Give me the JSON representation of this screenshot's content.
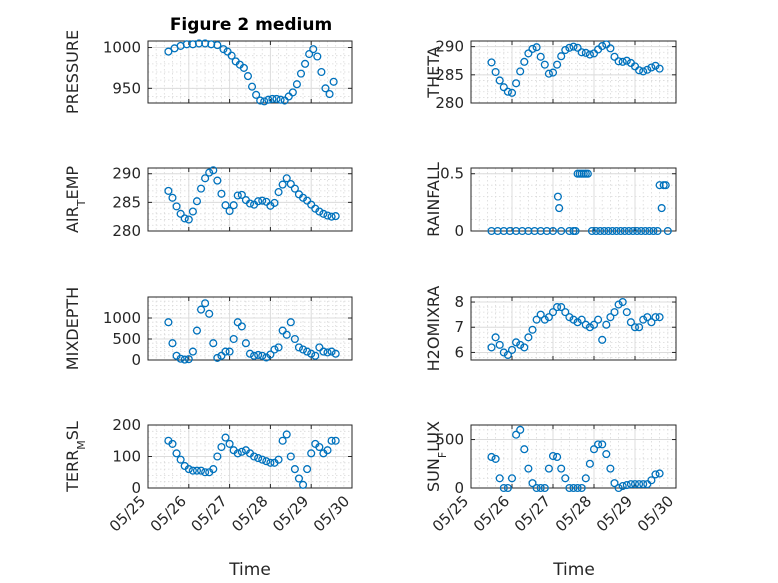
{
  "figure": {
    "title": "Figure 2 medium",
    "xlabel": "Time",
    "x_tick_labels": [
      "05/25",
      "05/26",
      "05/27",
      "05/28",
      "05/29",
      "05/30"
    ]
  },
  "chart_data": [
    {
      "type": "scatter",
      "ylabel": "PRESSURE",
      "xlim": [
        0,
        5
      ],
      "ylim": [
        932,
        1008
      ],
      "yticks": [
        950,
        1000
      ],
      "grid": true,
      "x": [
        0.5,
        0.65,
        0.8,
        0.95,
        1.1,
        1.25,
        1.4,
        1.55,
        1.7,
        1.85,
        1.95,
        2.05,
        2.15,
        2.25,
        2.35,
        2.45,
        2.55,
        2.65,
        2.75,
        2.85,
        2.95,
        3.05,
        3.15,
        3.25,
        3.35,
        3.45,
        3.55,
        3.65,
        3.75,
        3.85,
        3.95,
        4.05,
        4.15,
        4.25,
        4.35,
        4.45,
        4.55
      ],
      "y": [
        995,
        999,
        1002,
        1004,
        1004,
        1005,
        1005,
        1004,
        1003,
        998,
        995,
        990,
        983,
        979,
        975,
        965,
        952,
        942,
        935,
        934,
        936,
        937,
        937,
        936,
        935,
        940,
        945,
        955,
        968,
        980,
        992,
        998,
        989,
        970,
        950,
        943,
        958
      ]
    },
    {
      "type": "scatter",
      "ylabel": "THETA",
      "xlim": [
        0,
        5
      ],
      "ylim": [
        280,
        291
      ],
      "yticks": [
        280,
        285,
        290
      ],
      "grid": true,
      "x": [
        0.5,
        0.6,
        0.7,
        0.8,
        0.9,
        1.0,
        1.1,
        1.2,
        1.3,
        1.4,
        1.5,
        1.6,
        1.7,
        1.8,
        1.9,
        2.0,
        2.1,
        2.2,
        2.3,
        2.4,
        2.5,
        2.6,
        2.7,
        2.8,
        2.9,
        3.0,
        3.1,
        3.2,
        3.3,
        3.4,
        3.5,
        3.6,
        3.7,
        3.8,
        3.9,
        4.0,
        4.1,
        4.2,
        4.3,
        4.4,
        4.5,
        4.6
      ],
      "y": [
        287.2,
        285.5,
        284,
        282.8,
        282,
        281.8,
        283.5,
        285.6,
        287.3,
        288.8,
        289.6,
        289.9,
        288.2,
        286.8,
        285.2,
        285.4,
        286.8,
        288.3,
        289.4,
        289.8,
        290,
        289.8,
        289,
        288.9,
        288.6,
        288.8,
        289.5,
        290.1,
        290.4,
        289.7,
        288.2,
        287.4,
        287.3,
        287.5,
        287.1,
        286.5,
        285.8,
        285.6,
        285.9,
        286.3,
        286.6,
        286.1
      ]
    },
    {
      "type": "scatter",
      "ylabel": "AIR_TEMP",
      "xlim": [
        0,
        5
      ],
      "ylim": [
        280,
        291
      ],
      "yticks": [
        280,
        285,
        290
      ],
      "grid": true,
      "x": [
        0.5,
        0.6,
        0.7,
        0.8,
        0.9,
        1.0,
        1.1,
        1.2,
        1.3,
        1.4,
        1.5,
        1.6,
        1.7,
        1.8,
        1.9,
        2.0,
        2.1,
        2.2,
        2.3,
        2.4,
        2.5,
        2.6,
        2.7,
        2.8,
        2.9,
        3.0,
        3.1,
        3.2,
        3.3,
        3.4,
        3.5,
        3.6,
        3.7,
        3.8,
        3.9,
        4.0,
        4.1,
        4.2,
        4.3,
        4.4,
        4.5,
        4.6
      ],
      "y": [
        287,
        285.8,
        284.3,
        283,
        282.2,
        282,
        283.4,
        285.2,
        287.4,
        289.2,
        290.2,
        290.6,
        288.8,
        286.5,
        284.5,
        283.5,
        284.5,
        286.2,
        286.3,
        285.4,
        284.8,
        284.6,
        285.2,
        285.3,
        285.1,
        284.4,
        284.9,
        286.8,
        288.1,
        289.2,
        288.2,
        287.4,
        286.4,
        285.8,
        285.3,
        284.6,
        283.9,
        283.4,
        283,
        282.7,
        282.5,
        282.6
      ]
    },
    {
      "type": "scatter",
      "ylabel": "RAINFALL",
      "xlim": [
        0,
        5
      ],
      "ylim": [
        0,
        0.55
      ],
      "yticks": [
        0,
        0.5
      ],
      "grid": true,
      "x": [
        0.5,
        0.65,
        0.8,
        0.95,
        1.1,
        1.25,
        1.4,
        1.55,
        1.7,
        1.85,
        2.0,
        2.12,
        2.15,
        2.2,
        2.4,
        2.5,
        2.55,
        2.6,
        2.65,
        2.7,
        2.75,
        2.8,
        2.85,
        2.95,
        3.05,
        3.15,
        3.25,
        3.35,
        3.45,
        3.55,
        3.65,
        3.75,
        3.85,
        3.95,
        4.05,
        4.15,
        4.25,
        4.35,
        4.45,
        4.55,
        4.6,
        4.65,
        4.7,
        4.75,
        4.8
      ],
      "y": [
        0,
        0,
        0,
        0,
        0,
        0,
        0,
        0,
        0,
        0,
        0,
        0.3,
        0.2,
        0,
        0,
        0,
        0,
        0.5,
        0.5,
        0.5,
        0.5,
        0.5,
        0.5,
        0,
        0,
        0,
        0,
        0,
        0,
        0,
        0,
        0,
        0,
        0,
        0,
        0,
        0,
        0,
        0,
        0,
        0.4,
        0.2,
        0.4,
        0.4,
        0
      ]
    },
    {
      "type": "scatter",
      "ylabel": "MIXDEPTH",
      "xlim": [
        0,
        5
      ],
      "ylim": [
        0,
        1500
      ],
      "yticks": [
        0,
        500,
        1000
      ],
      "grid": true,
      "x": [
        0.5,
        0.6,
        0.7,
        0.8,
        0.9,
        1.0,
        1.1,
        1.2,
        1.3,
        1.4,
        1.5,
        1.6,
        1.7,
        1.8,
        1.9,
        2.0,
        2.1,
        2.2,
        2.3,
        2.4,
        2.5,
        2.6,
        2.7,
        2.8,
        2.9,
        3.0,
        3.1,
        3.2,
        3.3,
        3.4,
        3.5,
        3.6,
        3.7,
        3.8,
        3.9,
        4.0,
        4.1,
        4.2,
        4.3,
        4.4,
        4.5,
        4.6
      ],
      "y": [
        900,
        400,
        100,
        30,
        10,
        20,
        200,
        700,
        1200,
        1350,
        1100,
        400,
        50,
        100,
        200,
        200,
        500,
        900,
        800,
        400,
        150,
        100,
        120,
        100,
        60,
        130,
        250,
        300,
        700,
        600,
        900,
        500,
        300,
        250,
        200,
        150,
        100,
        300,
        200,
        180,
        200,
        150
      ]
    },
    {
      "type": "scatter",
      "ylabel": "H2OMIXRA",
      "xlim": [
        0,
        5
      ],
      "ylim": [
        5.7,
        8.2
      ],
      "yticks": [
        6,
        7,
        8
      ],
      "grid": true,
      "x": [
        0.5,
        0.6,
        0.7,
        0.8,
        0.9,
        1.0,
        1.1,
        1.2,
        1.3,
        1.4,
        1.5,
        1.6,
        1.7,
        1.8,
        1.9,
        2.0,
        2.1,
        2.2,
        2.3,
        2.4,
        2.5,
        2.6,
        2.7,
        2.8,
        2.9,
        3.0,
        3.1,
        3.2,
        3.3,
        3.4,
        3.5,
        3.6,
        3.7,
        3.8,
        3.9,
        4.0,
        4.1,
        4.2,
        4.3,
        4.4,
        4.5,
        4.6
      ],
      "y": [
        6.2,
        6.6,
        6.3,
        6,
        5.9,
        6.1,
        6.4,
        6.3,
        6.2,
        6.6,
        6.9,
        7.3,
        7.5,
        7.3,
        7.4,
        7.6,
        7.8,
        7.8,
        7.6,
        7.4,
        7.3,
        7.2,
        7.3,
        7.1,
        7,
        7.1,
        7.3,
        6.5,
        7.1,
        7.4,
        7.6,
        7.9,
        8,
        7.6,
        7.2,
        7,
        7,
        7.3,
        7.4,
        7.2,
        7.4,
        7.4
      ]
    },
    {
      "type": "scatter",
      "ylabel": "TERR_MSL",
      "xlim": [
        0,
        5
      ],
      "ylim": [
        0,
        200
      ],
      "yticks": [
        0,
        100,
        200
      ],
      "grid": true,
      "x": [
        0.5,
        0.6,
        0.7,
        0.8,
        0.9,
        1.0,
        1.1,
        1.2,
        1.3,
        1.4,
        1.5,
        1.6,
        1.7,
        1.8,
        1.9,
        2.0,
        2.1,
        2.2,
        2.3,
        2.4,
        2.5,
        2.6,
        2.7,
        2.8,
        2.9,
        3.0,
        3.1,
        3.2,
        3.3,
        3.4,
        3.5,
        3.6,
        3.7,
        3.8,
        3.9,
        4.0,
        4.1,
        4.2,
        4.3,
        4.4,
        4.5,
        4.6
      ],
      "y": [
        150,
        140,
        110,
        90,
        70,
        60,
        55,
        55,
        55,
        50,
        50,
        60,
        100,
        130,
        160,
        140,
        120,
        110,
        115,
        120,
        110,
        100,
        95,
        90,
        85,
        80,
        80,
        90,
        150,
        170,
        100,
        60,
        30,
        10,
        60,
        110,
        140,
        130,
        110,
        120,
        150,
        150
      ]
    },
    {
      "type": "scatter",
      "ylabel": "SUN_FLUX",
      "xlim": [
        0,
        5
      ],
      "ylim": [
        0,
        650
      ],
      "yticks": [
        0,
        500
      ],
      "grid": true,
      "x": [
        0.5,
        0.6,
        0.7,
        0.8,
        0.9,
        1.0,
        1.1,
        1.2,
        1.3,
        1.4,
        1.5,
        1.6,
        1.7,
        1.8,
        1.9,
        2.0,
        2.1,
        2.2,
        2.3,
        2.4,
        2.5,
        2.6,
        2.7,
        2.8,
        2.9,
        3.0,
        3.1,
        3.2,
        3.3,
        3.4,
        3.5,
        3.6,
        3.7,
        3.8,
        3.9,
        4.0,
        4.1,
        4.2,
        4.3,
        4.4,
        4.5,
        4.6
      ],
      "y": [
        320,
        300,
        100,
        0,
        0,
        100,
        550,
        600,
        400,
        200,
        50,
        0,
        0,
        0,
        200,
        330,
        320,
        200,
        100,
        0,
        0,
        0,
        0,
        100,
        250,
        400,
        450,
        450,
        350,
        200,
        50,
        0,
        20,
        30,
        40,
        40,
        40,
        40,
        40,
        80,
        140,
        150
      ]
    }
  ]
}
